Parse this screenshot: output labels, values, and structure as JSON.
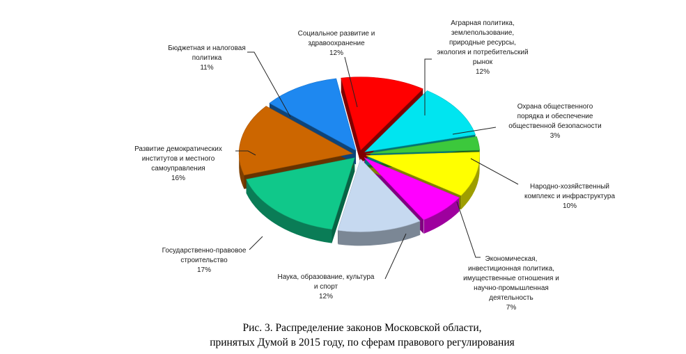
{
  "chart_data": {
    "type": "pie",
    "style": "3d-exploded",
    "slices": [
      {
        "label": "Социальное развитие и здравоохранение",
        "lines": [
          "Социальное развитие и",
          "здравоохранение"
        ],
        "pct_text": "12%",
        "value": 12,
        "color": "#ff0000"
      },
      {
        "label": "Аграрная политика, землепользование, природные ресурсы, экология и потребительский рынок",
        "lines": [
          "Аграрная политика,",
          "землепользование,",
          "природные ресурсы,",
          "экология и потребительский",
          "рынок"
        ],
        "pct_text": "12%",
        "value": 12,
        "color": "#00e5f0"
      },
      {
        "label": "Охрана общественного порядка и обеспечение общественной безопасности",
        "lines": [
          "Охрана общественного",
          "порядка и обеспечение",
          "общественной безопасности"
        ],
        "pct_text": "3%",
        "value": 3,
        "color": "#3cc83c"
      },
      {
        "label": "Народно-хозяйственный комплекс и инфраструктура",
        "lines": [
          "Народно-хозяйственный",
          "комплекс и инфраструктура"
        ],
        "pct_text": "10%",
        "value": 10,
        "color": "#ffff00"
      },
      {
        "label": "Экономическая, инвестиционная политика, имущественные отношения и научно-промышленная деятельность",
        "lines": [
          "Экономическая,",
          "инвестиционная политика,",
          "имущественные отношения и",
          "научно-промышленная",
          "деятельность"
        ],
        "pct_text": "7%",
        "value": 7,
        "color": "#ff00ff"
      },
      {
        "label": "Наука, образование, культура и спорт",
        "lines": [
          "Наука, образование, культура",
          "и спорт"
        ],
        "pct_text": "12%",
        "value": 12,
        "color": "#c6d9f0"
      },
      {
        "label": "Государственно-правовое строительство",
        "lines": [
          "Государственно-правовое",
          "строительство"
        ],
        "pct_text": "17%",
        "value": 17,
        "color": "#10c88a"
      },
      {
        "label": "Развитие демократических институтов и местного самоуправления",
        "lines": [
          "Развитие демократических",
          "институтов и местного",
          "самоуправления"
        ],
        "pct_text": "16%",
        "value": 16,
        "color": "#cc6600"
      },
      {
        "label": "Бюджетная и налоговая политика",
        "lines": [
          "Бюджетная и налоговая",
          "политика"
        ],
        "pct_text": "11%",
        "value": 11,
        "color": "#1e88f0"
      }
    ]
  },
  "caption": {
    "line1": "Рис. 3. Распределение законов Московской области,",
    "line2": "принятых Думой в 2015 году, по сферам правового регулирования"
  }
}
